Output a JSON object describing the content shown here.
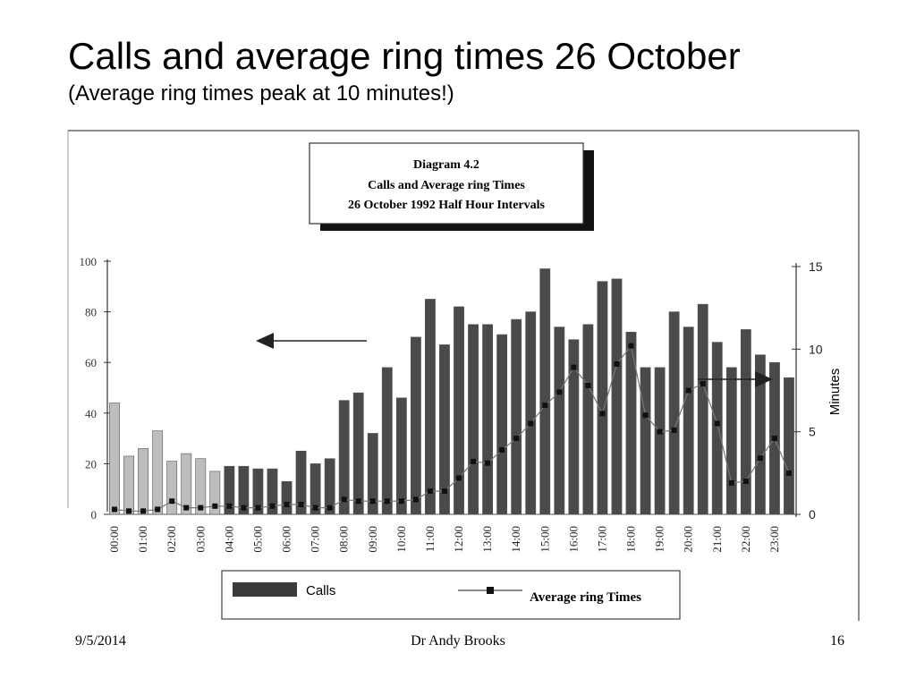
{
  "slide": {
    "title": "Calls and average ring times 26 October",
    "subtitle": "(Average ring times peak at 10 minutes!)"
  },
  "footer": {
    "date": "9/5/2014",
    "author": "Dr Andy Brooks",
    "page": "16"
  },
  "chart_data": {
    "type": "bar",
    "title_lines": [
      "Diagram 4.2",
      "Calls and Average ring Times",
      "26 October 1992  Half Hour Intervals"
    ],
    "ylabel_right": "Minutes",
    "categories": [
      "00:00",
      "00:30",
      "01:00",
      "01:30",
      "02:00",
      "02:30",
      "03:00",
      "03:30",
      "04:00",
      "04:30",
      "05:00",
      "05:30",
      "06:00",
      "06:30",
      "07:00",
      "07:30",
      "08:00",
      "08:30",
      "09:00",
      "09:30",
      "10:00",
      "10:30",
      "11:00",
      "11:30",
      "12:00",
      "12:30",
      "13:00",
      "13:30",
      "14:00",
      "14:30",
      "15:00",
      "15:30",
      "16:00",
      "16:30",
      "17:00",
      "17:30",
      "18:00",
      "18:30",
      "19:00",
      "19:30",
      "20:00",
      "20:30",
      "21:00",
      "21:30",
      "22:00",
      "22:30",
      "23:00",
      "23:30"
    ],
    "x_tick_labels": [
      "00:00",
      "01:00",
      "02:00",
      "03:00",
      "04:00",
      "05:00",
      "06:00",
      "07:00",
      "08:00",
      "09:00",
      "10:00",
      "11:00",
      "12:00",
      "13:00",
      "14:00",
      "15:00",
      "16:00",
      "17:00",
      "18:00",
      "19:00",
      "20:00",
      "21:00",
      "22:00",
      "23:00"
    ],
    "ylim_left": [
      0,
      100
    ],
    "yticks_left": [
      "0",
      "20",
      "40",
      "60",
      "80",
      "100"
    ],
    "ylim_right": [
      0,
      15
    ],
    "yticks_right": [
      "0",
      "5",
      "10",
      "15"
    ],
    "series": [
      {
        "name": "Calls",
        "axis": "left",
        "values": [
          44,
          23,
          26,
          33,
          21,
          24,
          22,
          17,
          19,
          19,
          18,
          18,
          13,
          25,
          20,
          22,
          45,
          48,
          32,
          58,
          46,
          70,
          85,
          67,
          82,
          75,
          75,
          71,
          77,
          80,
          97,
          74,
          69,
          75,
          92,
          93,
          72,
          58,
          58,
          80,
          74,
          83,
          68,
          58,
          73,
          63,
          60,
          54
        ]
      },
      {
        "name": "Average ring Times",
        "axis": "right",
        "values": [
          0.3,
          0.2,
          0.2,
          0.3,
          0.8,
          0.4,
          0.4,
          0.5,
          0.5,
          0.4,
          0.4,
          0.5,
          0.6,
          0.6,
          0.4,
          0.4,
          0.9,
          0.8,
          0.8,
          0.8,
          0.8,
          0.9,
          1.4,
          1.4,
          2.2,
          3.2,
          3.1,
          3.9,
          4.6,
          5.5,
          6.6,
          7.4,
          8.9,
          7.8,
          6.1,
          9.1,
          10.2,
          6.0,
          5.0,
          5.1,
          7.5,
          7.9,
          5.5,
          1.9,
          2.0,
          3.4,
          4.6,
          2.5
        ]
      }
    ],
    "bar_colors": {
      "light": "#bdbdbd",
      "dark": "#4a4a4a"
    },
    "legend_position": "bottom"
  }
}
